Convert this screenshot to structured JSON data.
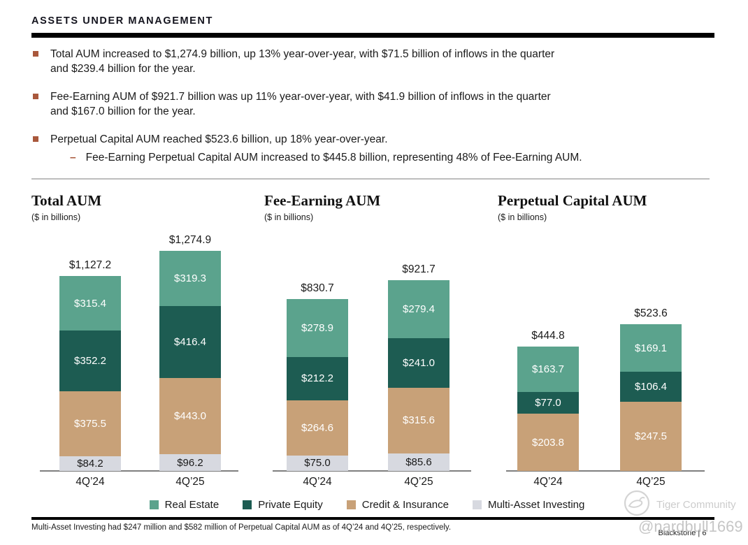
{
  "header": {
    "title": "ASSETS UNDER MANAGEMENT"
  },
  "bullets": [
    {
      "lines": [
        "Total AUM increased to $1,274.9 billion, up 13% year-over-year, with $71.5 billion of inflows in the quarter",
        "and $239.4 billion for the year."
      ]
    },
    {
      "lines": [
        "Fee-Earning AUM of $921.7 billion was up 11% year-over-year, with $41.9 billion of inflows in the quarter",
        "and $167.0 billion for the year."
      ]
    },
    {
      "lines": [
        "Perpetual Capital AUM reached $523.6 billion, up 18% year-over-year."
      ],
      "sub": "Fee-Earning Perpetual Capital AUM increased to $445.8 billion, representing 48% of Fee-Earning AUM."
    }
  ],
  "chart_data": [
    {
      "type": "bar",
      "title": "Total AUM",
      "subtitle": "($ in billions)",
      "categories": [
        "4Q’24",
        "4Q’25"
      ],
      "stack_order_top_to_bottom": [
        "Real Estate",
        "Private Equity",
        "Credit & Insurance",
        "Multi-Asset Investing"
      ],
      "bars": [
        {
          "category": "4Q’24",
          "total": 1127.2,
          "total_label": "$1,127.2",
          "segments": [
            {
              "series": "Real Estate",
              "value": 315.4,
              "label": "$315.4"
            },
            {
              "series": "Private Equity",
              "value": 352.2,
              "label": "$352.2"
            },
            {
              "series": "Credit & Insurance",
              "value": 375.5,
              "label": "$375.5"
            },
            {
              "series": "Multi-Asset Investing",
              "value": 84.2,
              "label": "$84.2"
            }
          ]
        },
        {
          "category": "4Q’25",
          "total": 1274.9,
          "total_label": "$1,274.9",
          "segments": [
            {
              "series": "Real Estate",
              "value": 319.3,
              "label": "$319.3"
            },
            {
              "series": "Private Equity",
              "value": 416.4,
              "label": "$416.4"
            },
            {
              "series": "Credit & Insurance",
              "value": 443.0,
              "label": "$443.0"
            },
            {
              "series": "Multi-Asset Investing",
              "value": 96.2,
              "label": "$96.2"
            }
          ]
        }
      ]
    },
    {
      "type": "bar",
      "title": "Fee-Earning AUM",
      "subtitle": "($ in billions)",
      "categories": [
        "4Q’24",
        "4Q’25"
      ],
      "stack_order_top_to_bottom": [
        "Real Estate",
        "Private Equity",
        "Credit & Insurance",
        "Multi-Asset Investing"
      ],
      "bars": [
        {
          "category": "4Q’24",
          "total": 830.7,
          "total_label": "$830.7",
          "segments": [
            {
              "series": "Real Estate",
              "value": 278.9,
              "label": "$278.9"
            },
            {
              "series": "Private Equity",
              "value": 212.2,
              "label": "$212.2"
            },
            {
              "series": "Credit & Insurance",
              "value": 264.6,
              "label": "$264.6"
            },
            {
              "series": "Multi-Asset Investing",
              "value": 75.0,
              "label": "$75.0"
            }
          ]
        },
        {
          "category": "4Q’25",
          "total": 921.7,
          "total_label": "$921.7",
          "segments": [
            {
              "series": "Real Estate",
              "value": 279.4,
              "label": "$279.4"
            },
            {
              "series": "Private Equity",
              "value": 241.0,
              "label": "$241.0"
            },
            {
              "series": "Credit & Insurance",
              "value": 315.6,
              "label": "$315.6"
            },
            {
              "series": "Multi-Asset Investing",
              "value": 85.6,
              "label": "$85.6"
            }
          ]
        }
      ]
    },
    {
      "type": "bar",
      "title": "Perpetual Capital AUM",
      "subtitle": "($ in billions)",
      "categories": [
        "4Q’24",
        "4Q’25"
      ],
      "stack_order_top_to_bottom": [
        "Real Estate",
        "Private Equity",
        "Credit & Insurance"
      ],
      "bars": [
        {
          "category": "4Q’24",
          "total": 444.8,
          "total_label": "$444.8",
          "segments": [
            {
              "series": "Real Estate",
              "value": 163.7,
              "label": "$163.7"
            },
            {
              "series": "Private Equity",
              "value": 77.0,
              "label": "$77.0"
            },
            {
              "series": "Credit & Insurance",
              "value": 203.8,
              "label": "$203.8"
            }
          ]
        },
        {
          "category": "4Q’25",
          "total": 523.6,
          "total_label": "$523.6",
          "segments": [
            {
              "series": "Real Estate",
              "value": 169.1,
              "label": "$169.1"
            },
            {
              "series": "Private Equity",
              "value": 106.4,
              "label": "$106.4"
            },
            {
              "series": "Credit & Insurance",
              "value": 247.5,
              "label": "$247.5"
            }
          ]
        }
      ]
    }
  ],
  "legend": {
    "items": [
      {
        "label": "Real Estate",
        "color": "#5BA38D",
        "text_color": "#FFFFFF"
      },
      {
        "label": "Private Equity",
        "color": "#1D5C52",
        "text_color": "#FFFFFF"
      },
      {
        "label": "Credit & Insurance",
        "color": "#C8A178",
        "text_color": "#FFFFFF"
      },
      {
        "label": "Multi-Asset Investing",
        "color": "#D7D9E0",
        "text_color": "#1A1A1A"
      }
    ]
  },
  "theme": {
    "bullet_color": "#A9583C",
    "header_bar_color": "#000000",
    "baseline_color": "#7F7F7F",
    "total_label_color": "#1A1A1A"
  },
  "footnote": {
    "text": "Multi-Asset Investing had $247 million and $582 million of Perpetual Capital AUM as of 4Q’24 and 4Q’25, respectively."
  },
  "footer": {
    "brand": "Blackstone",
    "separator": "|",
    "page_number": "6"
  },
  "watermark": {
    "community": "Tiger Community",
    "handle": "@nardbull1669"
  }
}
